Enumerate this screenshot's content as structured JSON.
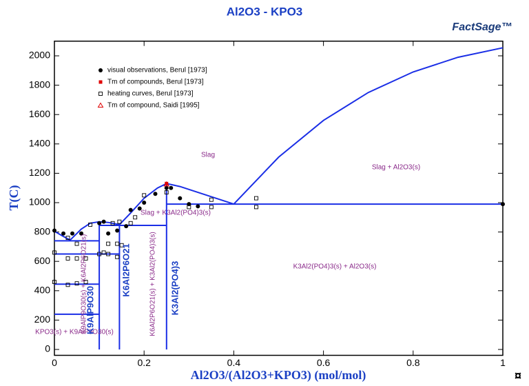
{
  "chart_data": {
    "type": "phase-diagram",
    "title": "Al2O3 - KPO3",
    "logo": "FactSage™",
    "corner_mark": "¤",
    "xlabel": "Al2O3/(Al2O3+KPO3) (mol/mol)",
    "ylabel": "T(C)",
    "xlim": [
      0,
      1
    ],
    "ylim": [
      -40,
      2100
    ],
    "xticks": [
      0,
      0.2,
      0.4,
      0.6,
      0.8,
      1
    ],
    "yticks": [
      0,
      200,
      400,
      600,
      800,
      1000,
      1200,
      1400,
      1600,
      1800,
      2000
    ],
    "boundary_color": "#1a2ee6",
    "boundaries": [
      {
        "x": [
          0,
          0.02,
          0.035,
          0.06,
          0.08,
          0.1,
          0.12,
          0.145
        ],
        "y": [
          805,
          770,
          745,
          820,
          860,
          870,
          865,
          850
        ]
      },
      {
        "x": [
          0.145,
          0.17,
          0.2,
          0.23,
          0.25,
          0.28,
          0.32,
          0.36,
          0.4
        ],
        "y": [
          850,
          930,
          1030,
          1100,
          1130,
          1110,
          1070,
          1030,
          990
        ]
      },
      {
        "x": [
          0.4,
          0.5,
          0.6,
          0.7,
          0.8,
          0.9,
          1.0
        ],
        "y": [
          990,
          1310,
          1560,
          1750,
          1890,
          1990,
          2055
        ]
      },
      {
        "x": [
          0,
          0.1
        ],
        "y": [
          740,
          740
        ]
      },
      {
        "x": [
          0,
          0.1
        ],
        "y": [
          650,
          650
        ]
      },
      {
        "x": [
          0,
          0.1
        ],
        "y": [
          445,
          445
        ]
      },
      {
        "x": [
          0,
          0.1
        ],
        "y": [
          240,
          240
        ]
      },
      {
        "x": [
          0.1,
          0.145
        ],
        "y": [
          650,
          650
        ]
      },
      {
        "x": [
          0.1,
          0.25
        ],
        "y": [
          845,
          845
        ]
      },
      {
        "x": [
          0.25,
          1
        ],
        "y": [
          990,
          990
        ]
      },
      {
        "x": [
          0.1,
          0.1
        ],
        "y": [
          0,
          870
        ]
      },
      {
        "x": [
          0.145,
          0.145
        ],
        "y": [
          0,
          850
        ]
      },
      {
        "x": [
          0.25,
          0.25
        ],
        "y": [
          0,
          1130
        ]
      }
    ],
    "series": [
      {
        "name": "visual observations, Berul [1973]",
        "marker": "filled-circle",
        "color": "#000000",
        "x": [
          0,
          0.02,
          0.04,
          0.06,
          0.1,
          0.11,
          0.12,
          0.14,
          0.16,
          0.17,
          0.19,
          0.2,
          0.225,
          0.25,
          0.26,
          0.28,
          0.3,
          0.32,
          1.0
        ],
        "y": [
          810,
          790,
          790,
          790,
          860,
          870,
          790,
          810,
          840,
          950,
          960,
          1000,
          1060,
          1100,
          1100,
          1030,
          990,
          975,
          990
        ]
      },
      {
        "name": "Tm of compounds, Berul [1973]",
        "marker": "filled-square",
        "color": "#e00000",
        "x": [
          0.25
        ],
        "y": [
          1130
        ]
      },
      {
        "name": "heating curves, Berul [1973]",
        "marker": "open-square",
        "color": "#000000",
        "x": [
          0,
          0,
          0.03,
          0.03,
          0.03,
          0.05,
          0.05,
          0.05,
          0.07,
          0.07,
          0.08,
          0.1,
          0.11,
          0.12,
          0.12,
          0.13,
          0.14,
          0.14,
          0.145,
          0.15,
          0.17,
          0.18,
          0.2,
          0.25,
          0.3,
          0.35,
          0.35,
          0.45,
          0.45
        ],
        "y": [
          660,
          460,
          760,
          620,
          440,
          720,
          620,
          450,
          620,
          460,
          850,
          650,
          660,
          720,
          650,
          860,
          720,
          630,
          870,
          710,
          860,
          900,
          1050,
          1070,
          970,
          1020,
          970,
          1030,
          970
        ]
      },
      {
        "name": "Tm of compound, Saidi [1995]",
        "marker": "open-triangle",
        "color": "#e00000",
        "x": [
          0.25
        ],
        "y": [
          1125
        ]
      }
    ],
    "annotations": [
      "Slag",
      "Slag + Al2O3(s)",
      "Slag + K3Al2(PO4)3(s)",
      "K3Al2(PO4)3(s) + Al2O3(s)",
      "KPO3(s) + K9AlP9O30(s)",
      "K9AlP9O30(s) + K6Al2P6O21(s)",
      "K6Al2P6O21(s) + K3Al2(PO4)3(s)",
      "K9AlP9O30",
      "K6Al2P6O21",
      "K3Al2(PO4)3"
    ]
  }
}
